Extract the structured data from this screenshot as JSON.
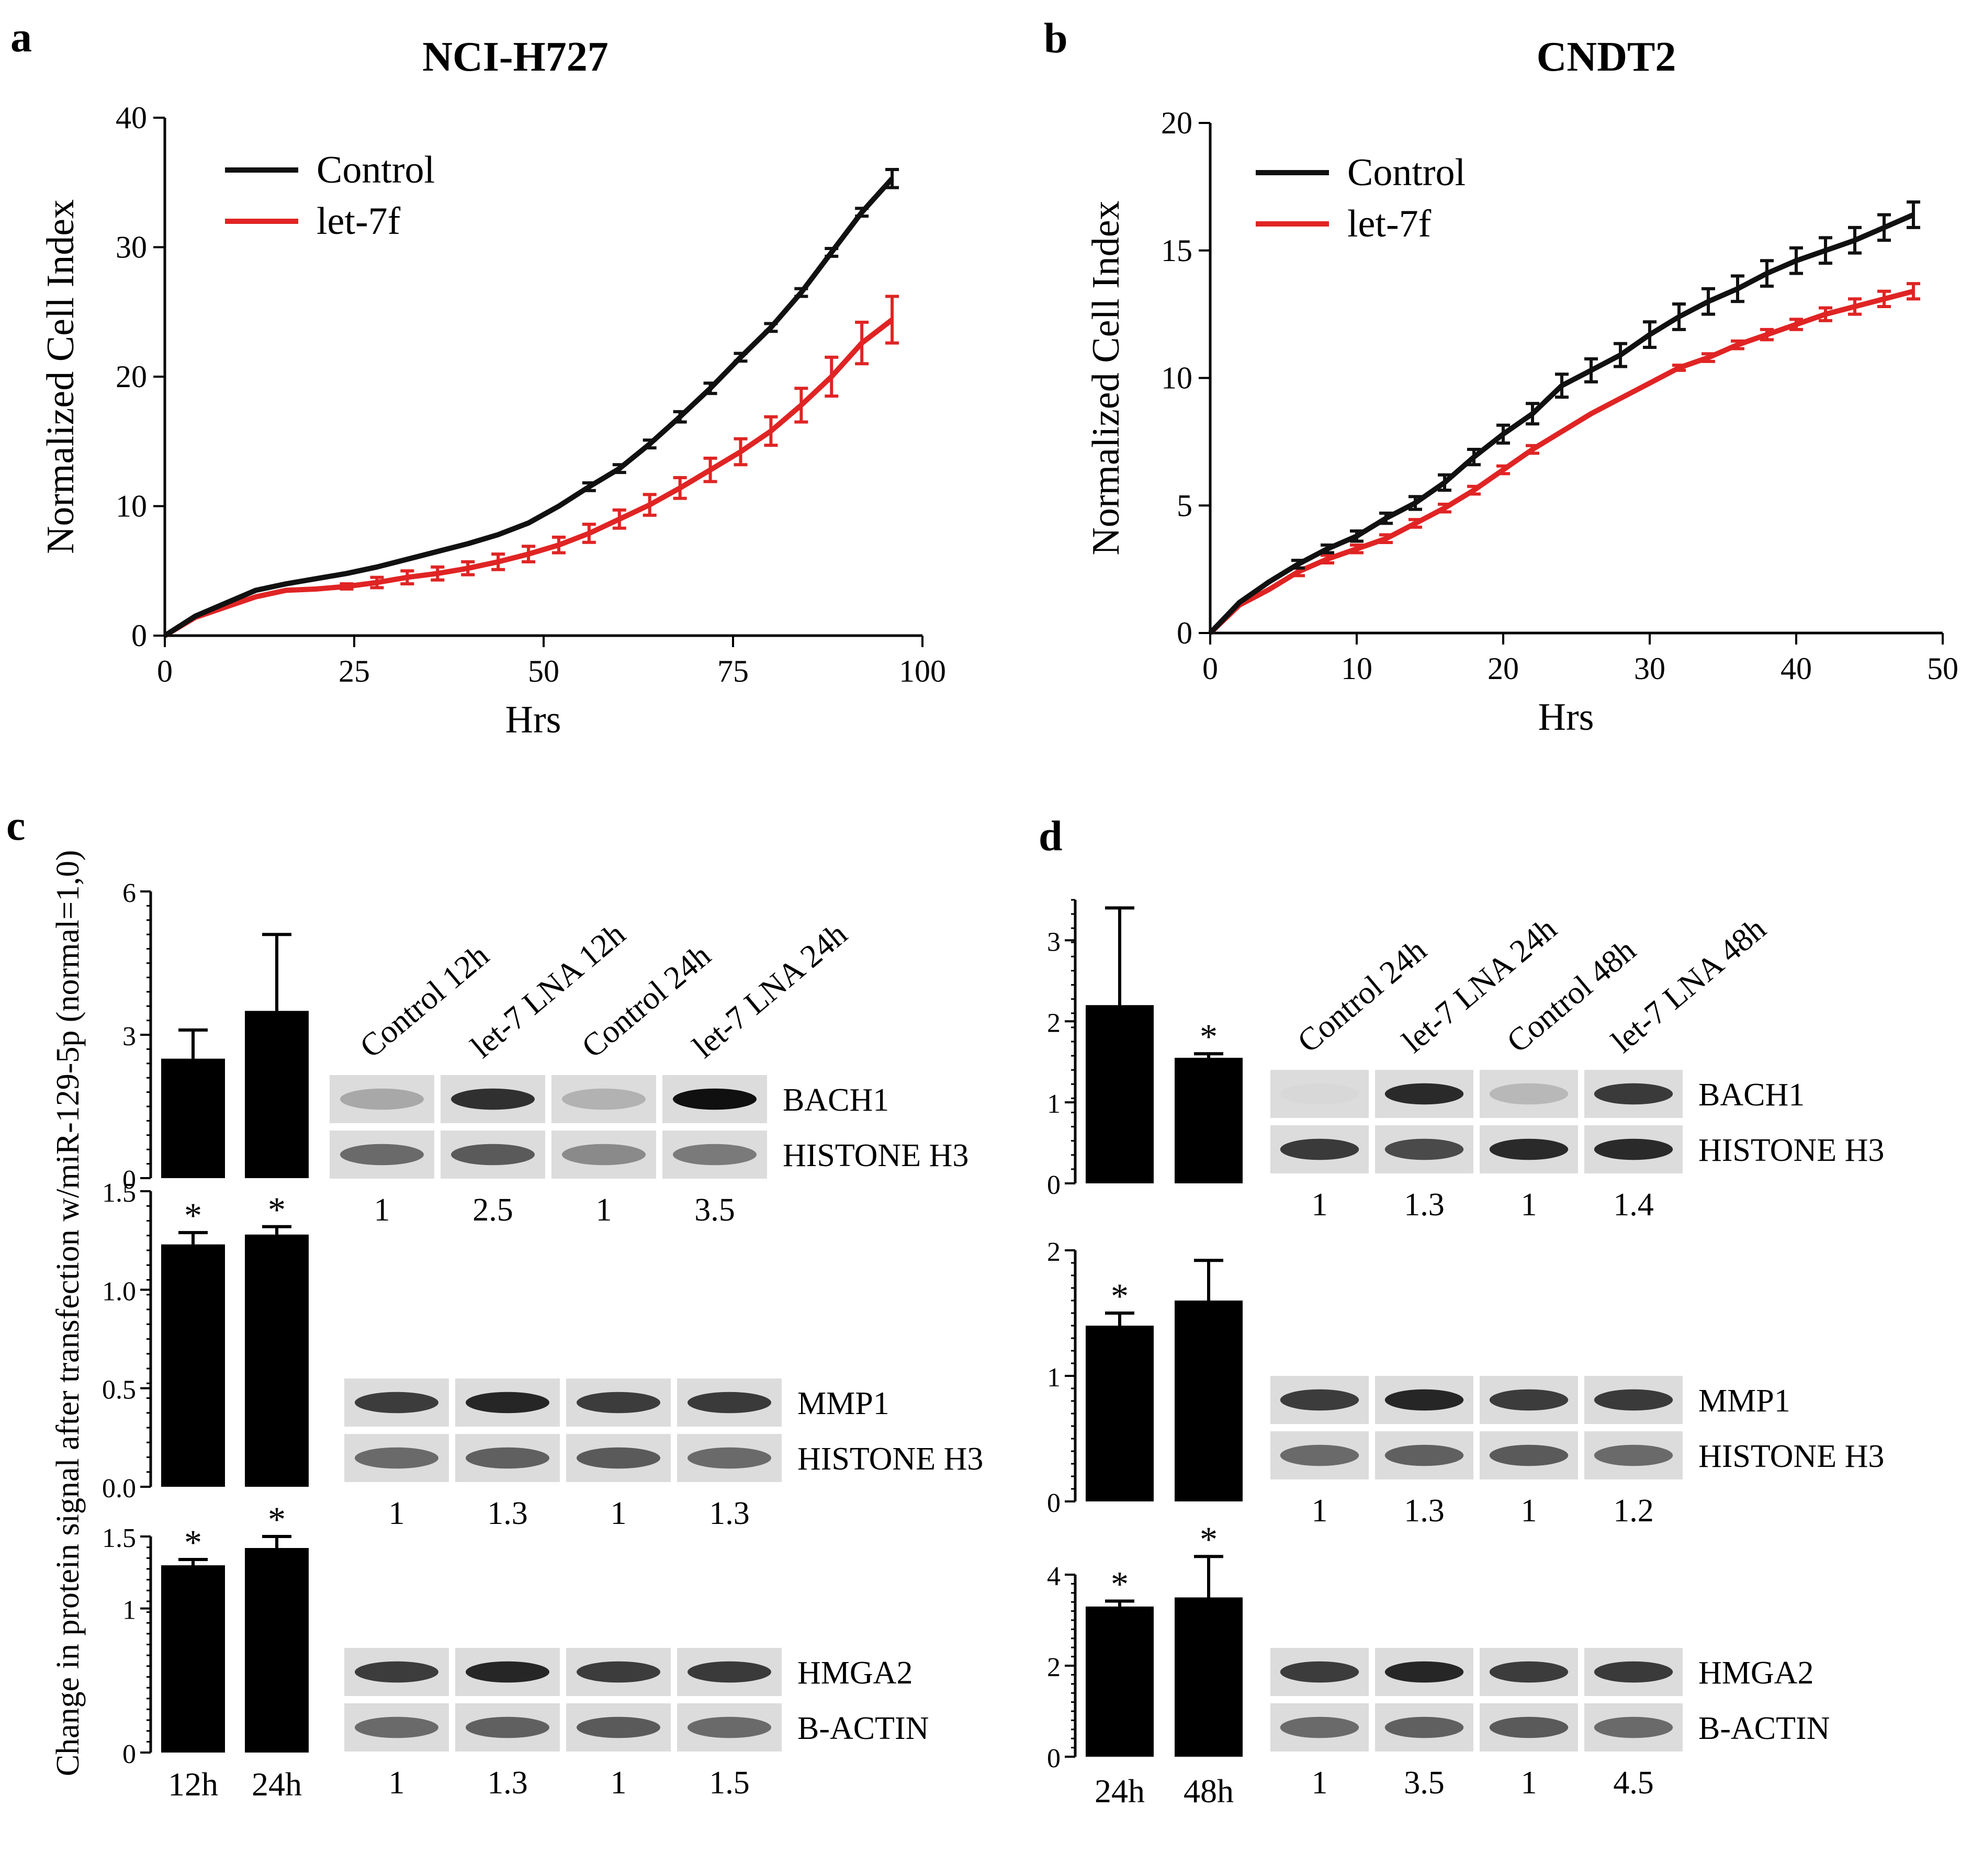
{
  "panels": {
    "a": {
      "letter": "a",
      "title": "NCI-H727"
    },
    "b": {
      "letter": "b",
      "title": "CNDT2"
    },
    "c": {
      "letter": "c"
    },
    "d": {
      "letter": "d"
    }
  },
  "colors": {
    "control": "#111111",
    "let7f": "#e02424",
    "bar": "#000000"
  },
  "chart_data": [
    {
      "id": "a",
      "type": "line",
      "title": "NCI-H727",
      "xlabel": "Hrs",
      "ylabel": "Normalized Cell Index",
      "xlim": [
        0,
        100
      ],
      "ylim": [
        0,
        40
      ],
      "xticks": [
        0,
        25,
        50,
        75,
        100
      ],
      "yticks": [
        0,
        10,
        20,
        30,
        40
      ],
      "legend": {
        "position": "top-left",
        "entries": [
          "Control",
          "let-7f"
        ]
      },
      "series": [
        {
          "name": "Control",
          "x": [
            0,
            4,
            8,
            12,
            16,
            20,
            24,
            28,
            32,
            36,
            40,
            44,
            48,
            52,
            56,
            60,
            64,
            68,
            72,
            76,
            80,
            84,
            88,
            92,
            96
          ],
          "y": [
            0,
            1.5,
            2.5,
            3.5,
            4.0,
            4.4,
            4.8,
            5.3,
            5.9,
            6.5,
            7.1,
            7.8,
            8.7,
            10.0,
            11.5,
            12.9,
            14.8,
            16.9,
            19.1,
            21.5,
            23.8,
            26.5,
            29.6,
            32.7,
            35.3
          ],
          "err": [
            0,
            0,
            0,
            0,
            0,
            0,
            0,
            0,
            0,
            0,
            0,
            0,
            0,
            0,
            0.3,
            0.3,
            0.3,
            0.4,
            0.4,
            0.3,
            0.3,
            0.3,
            0.3,
            0.3,
            0.7
          ]
        },
        {
          "name": "let-7f",
          "x": [
            0,
            4,
            8,
            12,
            16,
            20,
            24,
            28,
            32,
            36,
            40,
            44,
            48,
            52,
            56,
            60,
            64,
            68,
            72,
            76,
            80,
            84,
            88,
            92,
            96
          ],
          "y": [
            0,
            1.4,
            2.2,
            3.0,
            3.5,
            3.6,
            3.8,
            4.1,
            4.5,
            4.8,
            5.2,
            5.7,
            6.3,
            7.0,
            7.9,
            9.0,
            10.1,
            11.4,
            12.8,
            14.2,
            15.8,
            17.8,
            20.0,
            22.6,
            24.4
          ],
          "err": [
            0,
            0,
            0,
            0,
            0,
            0,
            0.2,
            0.4,
            0.5,
            0.5,
            0.5,
            0.6,
            0.6,
            0.6,
            0.7,
            0.7,
            0.8,
            0.8,
            0.9,
            1.0,
            1.1,
            1.3,
            1.5,
            1.6,
            1.8
          ]
        }
      ]
    },
    {
      "id": "b",
      "type": "line",
      "title": "CNDT2",
      "xlabel": "Hrs",
      "ylabel": "Normalized Cell Index",
      "xlim": [
        0,
        50
      ],
      "ylim": [
        0,
        20
      ],
      "xticks": [
        0,
        10,
        20,
        30,
        40,
        50
      ],
      "yticks": [
        0,
        5,
        10,
        15,
        20
      ],
      "legend": {
        "position": "top-left",
        "entries": [
          "Control",
          "let-7f"
        ]
      },
      "series": [
        {
          "name": "Control",
          "x": [
            0,
            2,
            4,
            6,
            8,
            10,
            12,
            14,
            16,
            18,
            20,
            22,
            24,
            26,
            28,
            30,
            32,
            34,
            36,
            38,
            40,
            42,
            44,
            46,
            48
          ],
          "y": [
            0,
            1.2,
            2.0,
            2.7,
            3.3,
            3.8,
            4.5,
            5.1,
            5.9,
            6.9,
            7.8,
            8.6,
            9.7,
            10.3,
            10.9,
            11.7,
            12.4,
            13.0,
            13.5,
            14.1,
            14.6,
            15.0,
            15.4,
            15.9,
            16.4
          ],
          "err": [
            0,
            0,
            0,
            0.15,
            0.15,
            0.2,
            0.2,
            0.25,
            0.3,
            0.3,
            0.35,
            0.4,
            0.45,
            0.45,
            0.45,
            0.5,
            0.5,
            0.5,
            0.5,
            0.5,
            0.5,
            0.5,
            0.5,
            0.5,
            0.5
          ]
        },
        {
          "name": "let-7f",
          "x": [
            0,
            2,
            4,
            6,
            8,
            10,
            12,
            14,
            16,
            18,
            20,
            22,
            24,
            26,
            28,
            30,
            32,
            34,
            36,
            38,
            40,
            42,
            44,
            46,
            48
          ],
          "y": [
            0,
            1.1,
            1.7,
            2.4,
            2.9,
            3.3,
            3.7,
            4.3,
            4.9,
            5.6,
            6.4,
            7.2,
            7.9,
            8.6,
            9.2,
            9.8,
            10.4,
            10.8,
            11.3,
            11.7,
            12.1,
            12.5,
            12.8,
            13.1,
            13.4
          ],
          "err": [
            0,
            0,
            0,
            0.15,
            0.15,
            0.15,
            0.15,
            0.15,
            0.15,
            0.15,
            0.15,
            0.15,
            0,
            0,
            0,
            0,
            0.1,
            0.15,
            0.15,
            0.2,
            0.2,
            0.25,
            0.3,
            0.3,
            0.3
          ]
        }
      ]
    },
    {
      "id": "c",
      "type": "bar",
      "ylabel": "Change in protein signal after transfection w/miR-129-5p (normal=1,0)",
      "categories": [
        "12h",
        "24h"
      ],
      "subplots": [
        {
          "name": "BACH1",
          "values": [
            2.5,
            3.5
          ],
          "err": [
            0.6,
            1.6
          ],
          "sig": [
            false,
            false
          ],
          "ylim": [
            0,
            6
          ],
          "ytick_labels": [
            "0",
            "3",
            "6"
          ],
          "blot": {
            "lanes": [
              "Control 12h",
              "let-7 LNA 12h",
              "Control 24h",
              "let-7 LNA 24h"
            ],
            "proteins": [
              "BACH1",
              "HISTONE H3"
            ],
            "ratios": [
              "1",
              "2.5",
              "1",
              "3.5"
            ]
          }
        },
        {
          "name": "MMP1",
          "values": [
            1.23,
            1.28
          ],
          "err": [
            0.06,
            0.04
          ],
          "sig": [
            true,
            true
          ],
          "ylim": [
            0,
            1.5
          ],
          "ytick_labels": [
            "0.0",
            "0.5",
            "1.0",
            "1.5"
          ],
          "blot": {
            "proteins": [
              "MMP1",
              "HISTONE H3"
            ],
            "ratios": [
              "1",
              "1.3",
              "1",
              "1.3"
            ]
          }
        },
        {
          "name": "HMGA2",
          "values": [
            1.3,
            1.42
          ],
          "err": [
            0.04,
            0.08
          ],
          "sig": [
            true,
            true
          ],
          "ylim": [
            0,
            1.5
          ],
          "ytick_labels": [
            "0",
            "1",
            "1.5"
          ],
          "blot": {
            "proteins": [
              "HMGA2",
              "B-ACTIN"
            ],
            "ratios": [
              "1",
              "1.3",
              "1",
              "1.5"
            ]
          }
        }
      ]
    },
    {
      "id": "d",
      "type": "bar",
      "categories": [
        "24h",
        "48h"
      ],
      "subplots": [
        {
          "name": "BACH1",
          "values": [
            2.2,
            1.55
          ],
          "err": [
            1.2,
            0.05
          ],
          "sig": [
            false,
            true
          ],
          "ylim": [
            0,
            3.5
          ],
          "ytick_labels": [
            "0",
            "1",
            "2",
            "3"
          ],
          "blot": {
            "lanes": [
              "Control 24h",
              "let-7 LNA 24h",
              "Control 48h",
              "let-7 LNA 48h"
            ],
            "proteins": [
              "BACH1",
              "HISTONE H3"
            ],
            "ratios": [
              "1",
              "1.3",
              "1",
              "1.4"
            ]
          }
        },
        {
          "name": "MMP1",
          "values": [
            1.4,
            1.6
          ],
          "err": [
            0.1,
            0.32
          ],
          "sig": [
            true,
            false
          ],
          "ylim": [
            0,
            2
          ],
          "ytick_labels": [
            "0",
            "1",
            "2"
          ],
          "blot": {
            "proteins": [
              "MMP1",
              "HISTONE H3"
            ],
            "ratios": [
              "1",
              "1.3",
              "1",
              "1.2"
            ]
          }
        },
        {
          "name": "HMGA2",
          "values": [
            3.3,
            3.5
          ],
          "err": [
            0.12,
            0.9
          ],
          "sig": [
            true,
            true
          ],
          "ylim": [
            0,
            4
          ],
          "ytick_labels": [
            "0",
            "2",
            "4"
          ],
          "blot": {
            "proteins": [
              "HMGA2",
              "B-ACTIN"
            ],
            "ratios": [
              "1",
              "3.5",
              "1",
              "4.5"
            ]
          }
        }
      ]
    }
  ]
}
